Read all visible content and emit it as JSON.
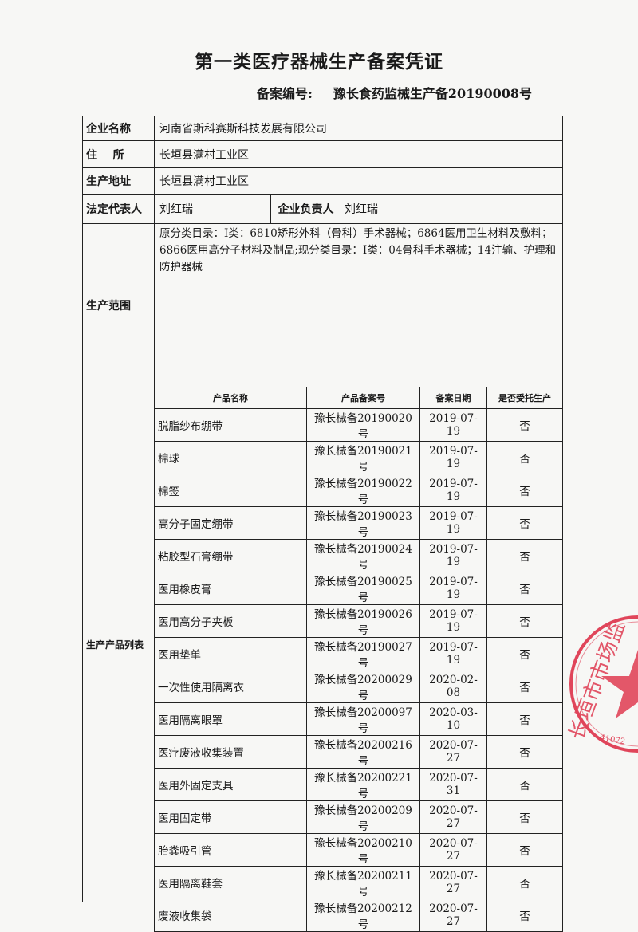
{
  "title": "第一类医疗器械生产备案凭证",
  "record_number": {
    "label": "备案编号:",
    "value": "豫长食药监械生产备20190008号"
  },
  "company": {
    "name_label": "企业名称",
    "name": "河南省斯科赛斯科技发展有限公司",
    "address_label": "住    所",
    "address": "长垣县满村工业区",
    "production_address_label": "生产地址",
    "production_address": "长垣县满村工业区",
    "legal_rep_label": "法定代表人",
    "legal_rep": "刘红瑞",
    "head_label": "企业负责人",
    "head": "刘红瑞",
    "scope_label": "生产范围",
    "scope": "原分类目录：Ⅰ类：6810矫形外科（骨科）手术器械；6864医用卫生材料及敷料；6866医用高分子材料及制品;现分类目录：Ⅰ类：04骨科手术器械；14注输、护理和防护器械"
  },
  "products": {
    "section_label": "生产产品列表",
    "headers": [
      "产品名称",
      "产品备案号",
      "备案日期",
      "是否受托生产"
    ],
    "rows": [
      [
        "脱脂纱布绷带",
        "豫长械备20190020号",
        "2019-07-19",
        "否"
      ],
      [
        "棉球",
        "豫长械备20190021号",
        "2019-07-19",
        "否"
      ],
      [
        "棉签",
        "豫长械备20190022号",
        "2019-07-19",
        "否"
      ],
      [
        "高分子固定绷带",
        "豫长械备20190023号",
        "2019-07-19",
        "否"
      ],
      [
        "粘胶型石膏绷带",
        "豫长械备20190024号",
        "2019-07-19",
        "否"
      ],
      [
        "医用橡皮膏",
        "豫长械备20190025号",
        "2019-07-19",
        "否"
      ],
      [
        "医用高分子夹板",
        "豫长械备20190026号",
        "2019-07-19",
        "否"
      ],
      [
        "医用垫单",
        "豫长械备20190027号",
        "2019-07-19",
        "否"
      ],
      [
        "一次性使用隔离衣",
        "豫长械备20200029号",
        "2020-02-08",
        "否"
      ],
      [
        "医用隔离眼罩",
        "豫长械备20200097号",
        "2020-03-10",
        "否"
      ],
      [
        "医疗废液收集装置",
        "豫长械备20200216号",
        "2020-07-27",
        "否"
      ],
      [
        "医用外固定支具",
        "豫长械备20200221号",
        "2020-07-31",
        "否"
      ],
      [
        "医用固定带",
        "豫长械备20200209号",
        "2020-07-27",
        "否"
      ],
      [
        "胎粪吸引管",
        "豫长械备20200210号",
        "2020-07-27",
        "否"
      ],
      [
        "医用隔离鞋套",
        "豫长械备20200211号",
        "2020-07-27",
        "否"
      ],
      [
        "废液收集袋",
        "豫长械备20200212号",
        "2020-07-27",
        "否"
      ]
    ]
  },
  "stamp": {
    "text": "长垣市市场监",
    "code": "41072",
    "color": "#e0455a"
  }
}
